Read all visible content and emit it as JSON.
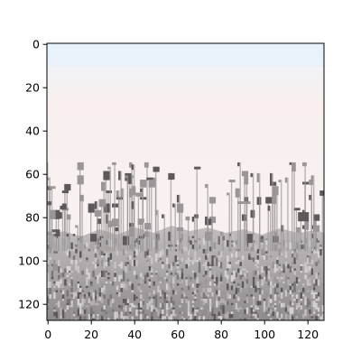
{
  "chart_data": {
    "type": "heatmap",
    "title": "",
    "xlabel": "",
    "ylabel": "",
    "image_size": [
      128,
      128
    ],
    "xlim": [
      0,
      128
    ],
    "ylim": [
      128,
      0
    ],
    "x_ticks": [
      0,
      20,
      40,
      60,
      80,
      100,
      120
    ],
    "y_ticks": [
      0,
      20,
      40,
      60,
      80,
      100,
      120
    ],
    "x_tick_labels": [
      "0",
      "20",
      "40",
      "60",
      "80",
      "100",
      "120"
    ],
    "y_tick_labels": [
      "0",
      "20",
      "40",
      "60",
      "80",
      "100",
      "120"
    ],
    "grid": false,
    "content": "pixelated photo: pale pinkish sky over a field of grey dried grasses and seed heads",
    "colors": {
      "sky_top": "#e6f1fa",
      "sky": "#f7efef",
      "grass_light": "#c9c5c6",
      "grass_mid": "#9a9596",
      "grass_dark": "#5d5859"
    }
  }
}
